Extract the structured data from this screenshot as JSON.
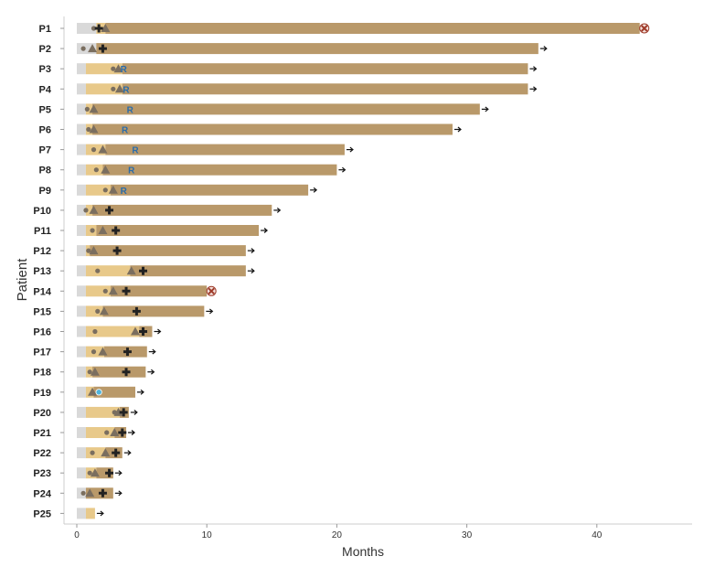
{
  "chart_data": {
    "type": "swimmer",
    "xlabel": "Months",
    "ylabel": "Patient",
    "xlim": [
      0,
      47.5
    ],
    "xticks": [
      0,
      10,
      20,
      30,
      40
    ],
    "colors": {
      "screening": "#d9d9d9",
      "induction": "#e8c98a",
      "maintenance": "#b9996a",
      "marker": "#7a6e5f",
      "plus": "#222222",
      "death": "#9e3b2a",
      "response": "#2b6ca8",
      "special_dot": "#4fb3d9"
    },
    "patients": [
      {
        "id": "P1",
        "screen": [
          0,
          1.5
        ],
        "induction": [
          1.5,
          2.2
        ],
        "maint": [
          2.2,
          43.3
        ],
        "end": "death",
        "dots": [
          1.3
        ],
        "triangles": [
          2.2
        ],
        "plus": [
          1.7
        ],
        "r": []
      },
      {
        "id": "P2",
        "screen": [
          0,
          1.5
        ],
        "induction": [
          1.5,
          1.5
        ],
        "maint": [
          1.5,
          35.5
        ],
        "end": "ongoing",
        "dots": [
          0.5
        ],
        "triangles": [
          1.2
        ],
        "plus": [
          2.0
        ],
        "r": []
      },
      {
        "id": "P3",
        "screen": [
          0,
          0.7
        ],
        "induction": [
          0.7,
          3.5
        ],
        "maint": [
          3.5,
          34.7
        ],
        "end": "ongoing",
        "dots": [
          2.8
        ],
        "triangles": [
          3.2
        ],
        "plus": [],
        "r": [
          3.6
        ]
      },
      {
        "id": "P4",
        "screen": [
          0,
          0.7
        ],
        "induction": [
          0.7,
          3.5
        ],
        "maint": [
          3.5,
          34.7
        ],
        "end": "ongoing",
        "dots": [
          2.8
        ],
        "triangles": [
          3.3
        ],
        "plus": [],
        "r": [
          3.8
        ]
      },
      {
        "id": "P5",
        "screen": [
          0,
          0.7
        ],
        "induction": [
          0.7,
          1.2
        ],
        "maint": [
          1.2,
          31.0
        ],
        "end": "ongoing",
        "dots": [
          0.8
        ],
        "triangles": [
          1.3
        ],
        "plus": [],
        "r": [
          4.1
        ]
      },
      {
        "id": "P6",
        "screen": [
          0,
          0.7
        ],
        "induction": [
          0.7,
          1.2
        ],
        "maint": [
          1.2,
          28.9
        ],
        "end": "ongoing",
        "dots": [
          0.9
        ],
        "triangles": [
          1.3
        ],
        "plus": [],
        "r": [
          3.7
        ]
      },
      {
        "id": "P7",
        "screen": [
          0,
          0.7
        ],
        "induction": [
          0.7,
          2.2
        ],
        "maint": [
          2.2,
          20.6
        ],
        "end": "ongoing",
        "dots": [
          1.3
        ],
        "triangles": [
          2.0
        ],
        "plus": [],
        "r": [
          4.5
        ]
      },
      {
        "id": "P8",
        "screen": [
          0,
          0.7
        ],
        "induction": [
          0.7,
          2.0
        ],
        "maint": [
          2.0,
          20.0
        ],
        "end": "ongoing",
        "dots": [
          1.5
        ],
        "triangles": [
          2.2
        ],
        "plus": [],
        "r": [
          4.2
        ]
      },
      {
        "id": "P9",
        "screen": [
          0,
          0.7
        ],
        "induction": [
          0.7,
          2.6
        ],
        "maint": [
          2.6,
          17.8
        ],
        "end": "ongoing",
        "dots": [
          2.2
        ],
        "triangles": [
          2.8
        ],
        "plus": [],
        "r": [
          3.6
        ]
      },
      {
        "id": "P10",
        "screen": [
          0,
          0.7
        ],
        "induction": [
          0.7,
          1.2
        ],
        "maint": [
          1.2,
          15.0
        ],
        "end": "ongoing",
        "dots": [
          0.7
        ],
        "triangles": [
          1.3
        ],
        "plus": [
          2.5
        ],
        "r": []
      },
      {
        "id": "P11",
        "screen": [
          0,
          0.7
        ],
        "induction": [
          0.7,
          1.5
        ],
        "maint": [
          1.5,
          14.0
        ],
        "end": "ongoing",
        "dots": [
          1.2
        ],
        "triangles": [
          2.0
        ],
        "plus": [
          3.0
        ],
        "r": []
      },
      {
        "id": "P12",
        "screen": [
          0,
          0.7
        ],
        "induction": [
          0.7,
          1.0
        ],
        "maint": [
          1.0,
          13.0
        ],
        "end": "ongoing",
        "dots": [
          0.9
        ],
        "triangles": [
          1.3
        ],
        "plus": [
          3.1
        ],
        "r": []
      },
      {
        "id": "P13",
        "screen": [
          0,
          0.7
        ],
        "induction": [
          0.7,
          4.1
        ],
        "maint": [
          4.1,
          13.0
        ],
        "end": "ongoing",
        "dots": [
          1.6
        ],
        "triangles": [
          4.2
        ],
        "plus": [
          5.1
        ],
        "r": []
      },
      {
        "id": "P14",
        "screen": [
          0,
          0.7
        ],
        "induction": [
          0.7,
          2.6
        ],
        "maint": [
          2.6,
          10.0
        ],
        "end": "death",
        "dots": [
          2.2
        ],
        "triangles": [
          2.8
        ],
        "plus": [
          3.8
        ],
        "r": []
      },
      {
        "id": "P15",
        "screen": [
          0,
          0.7
        ],
        "induction": [
          0.7,
          2.0
        ],
        "maint": [
          2.0,
          9.8
        ],
        "end": "ongoing",
        "dots": [
          1.6
        ],
        "triangles": [
          2.1
        ],
        "plus": [
          4.6
        ],
        "r": []
      },
      {
        "id": "P16",
        "screen": [
          0,
          0.7
        ],
        "induction": [
          0.7,
          4.8
        ],
        "maint": [
          4.8,
          5.8
        ],
        "end": "ongoing",
        "dots": [
          1.4
        ],
        "triangles": [
          4.5
        ],
        "plus": [
          5.1
        ],
        "r": []
      },
      {
        "id": "P17",
        "screen": [
          0,
          0.7
        ],
        "induction": [
          0.7,
          2.1
        ],
        "maint": [
          2.1,
          5.4
        ],
        "end": "ongoing",
        "dots": [
          1.3
        ],
        "triangles": [
          2.0
        ],
        "plus": [
          3.9
        ],
        "r": []
      },
      {
        "id": "P18",
        "screen": [
          0,
          0.7
        ],
        "induction": [
          0.7,
          1.2
        ],
        "maint": [
          1.2,
          5.3
        ],
        "end": "ongoing",
        "dots": [
          1.0
        ],
        "triangles": [
          1.4
        ],
        "plus": [
          3.8
        ],
        "r": []
      },
      {
        "id": "P19",
        "screen": [
          0,
          0.7
        ],
        "induction": [
          0.7,
          1.3
        ],
        "maint": [
          1.3,
          4.5
        ],
        "end": "ongoing",
        "dots": [],
        "triangles": [
          1.2
        ],
        "plus": [],
        "r": [],
        "special_dots": [
          1.7
        ]
      },
      {
        "id": "P20",
        "screen": [
          0,
          0.7
        ],
        "induction": [
          0.7,
          3.3
        ],
        "maint": [
          3.3,
          4.0
        ],
        "end": "ongoing",
        "dots": [
          2.9
        ],
        "triangles": [
          3.2
        ],
        "plus": [
          3.6
        ],
        "r": []
      },
      {
        "id": "P21",
        "screen": [
          0,
          0.7
        ],
        "induction": [
          0.7,
          2.9
        ],
        "maint": [
          2.9,
          3.8
        ],
        "end": "ongoing",
        "dots": [
          2.3
        ],
        "triangles": [
          2.9
        ],
        "plus": [
          3.5
        ],
        "r": []
      },
      {
        "id": "P22",
        "screen": [
          0,
          0.7
        ],
        "induction": [
          0.7,
          2.2
        ],
        "maint": [
          2.2,
          3.5
        ],
        "end": "ongoing",
        "dots": [
          1.2
        ],
        "triangles": [
          2.2
        ],
        "plus": [
          3.0
        ],
        "r": []
      },
      {
        "id": "P23",
        "screen": [
          0,
          0.7
        ],
        "induction": [
          0.7,
          1.5
        ],
        "maint": [
          1.5,
          2.8
        ],
        "end": "ongoing",
        "dots": [
          1.0
        ],
        "triangles": [
          1.4
        ],
        "plus": [
          2.5
        ],
        "r": []
      },
      {
        "id": "P24",
        "screen": [
          0,
          0.7
        ],
        "induction": [
          0.7,
          0.7
        ],
        "maint": [
          0.7,
          2.8
        ],
        "end": "ongoing",
        "dots": [
          0.5
        ],
        "triangles": [
          1.0
        ],
        "plus": [
          2.0
        ],
        "r": []
      },
      {
        "id": "P25",
        "screen": [
          0,
          0.7
        ],
        "induction": [
          0.7,
          1.4
        ],
        "maint": [
          1.4,
          1.4
        ],
        "end": "ongoing",
        "dots": [],
        "triangles": [],
        "plus": [],
        "r": []
      }
    ]
  }
}
